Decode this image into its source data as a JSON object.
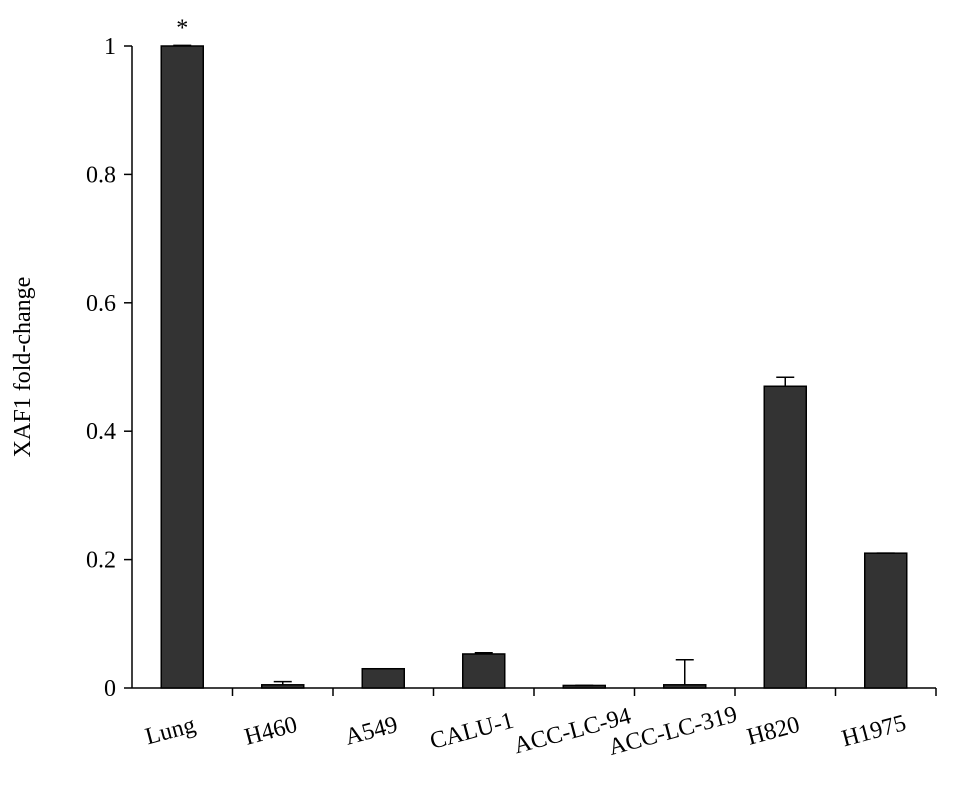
{
  "chart_data": {
    "type": "bar",
    "y_label": "XAF1 fold-change",
    "categories": [
      "Lung",
      "H460",
      "A549",
      "CALU-1",
      "ACC-LC-94",
      "ACC-LC-319",
      "H820",
      "H1975"
    ],
    "values": [
      1.0,
      0.005,
      0.03,
      0.053,
      0.004,
      0.005,
      0.47,
      0.21
    ],
    "errors": [
      0.001,
      0.005,
      0,
      0.002,
      0,
      0.039,
      0.014,
      0
    ],
    "color": "#333333",
    "ylim": [
      0,
      1
    ],
    "yticks": [
      0,
      0.2,
      0.4,
      0.6,
      0.8,
      1
    ],
    "annotations": [
      {
        "text": "*",
        "category": "Lung"
      }
    ],
    "grid": false
  }
}
